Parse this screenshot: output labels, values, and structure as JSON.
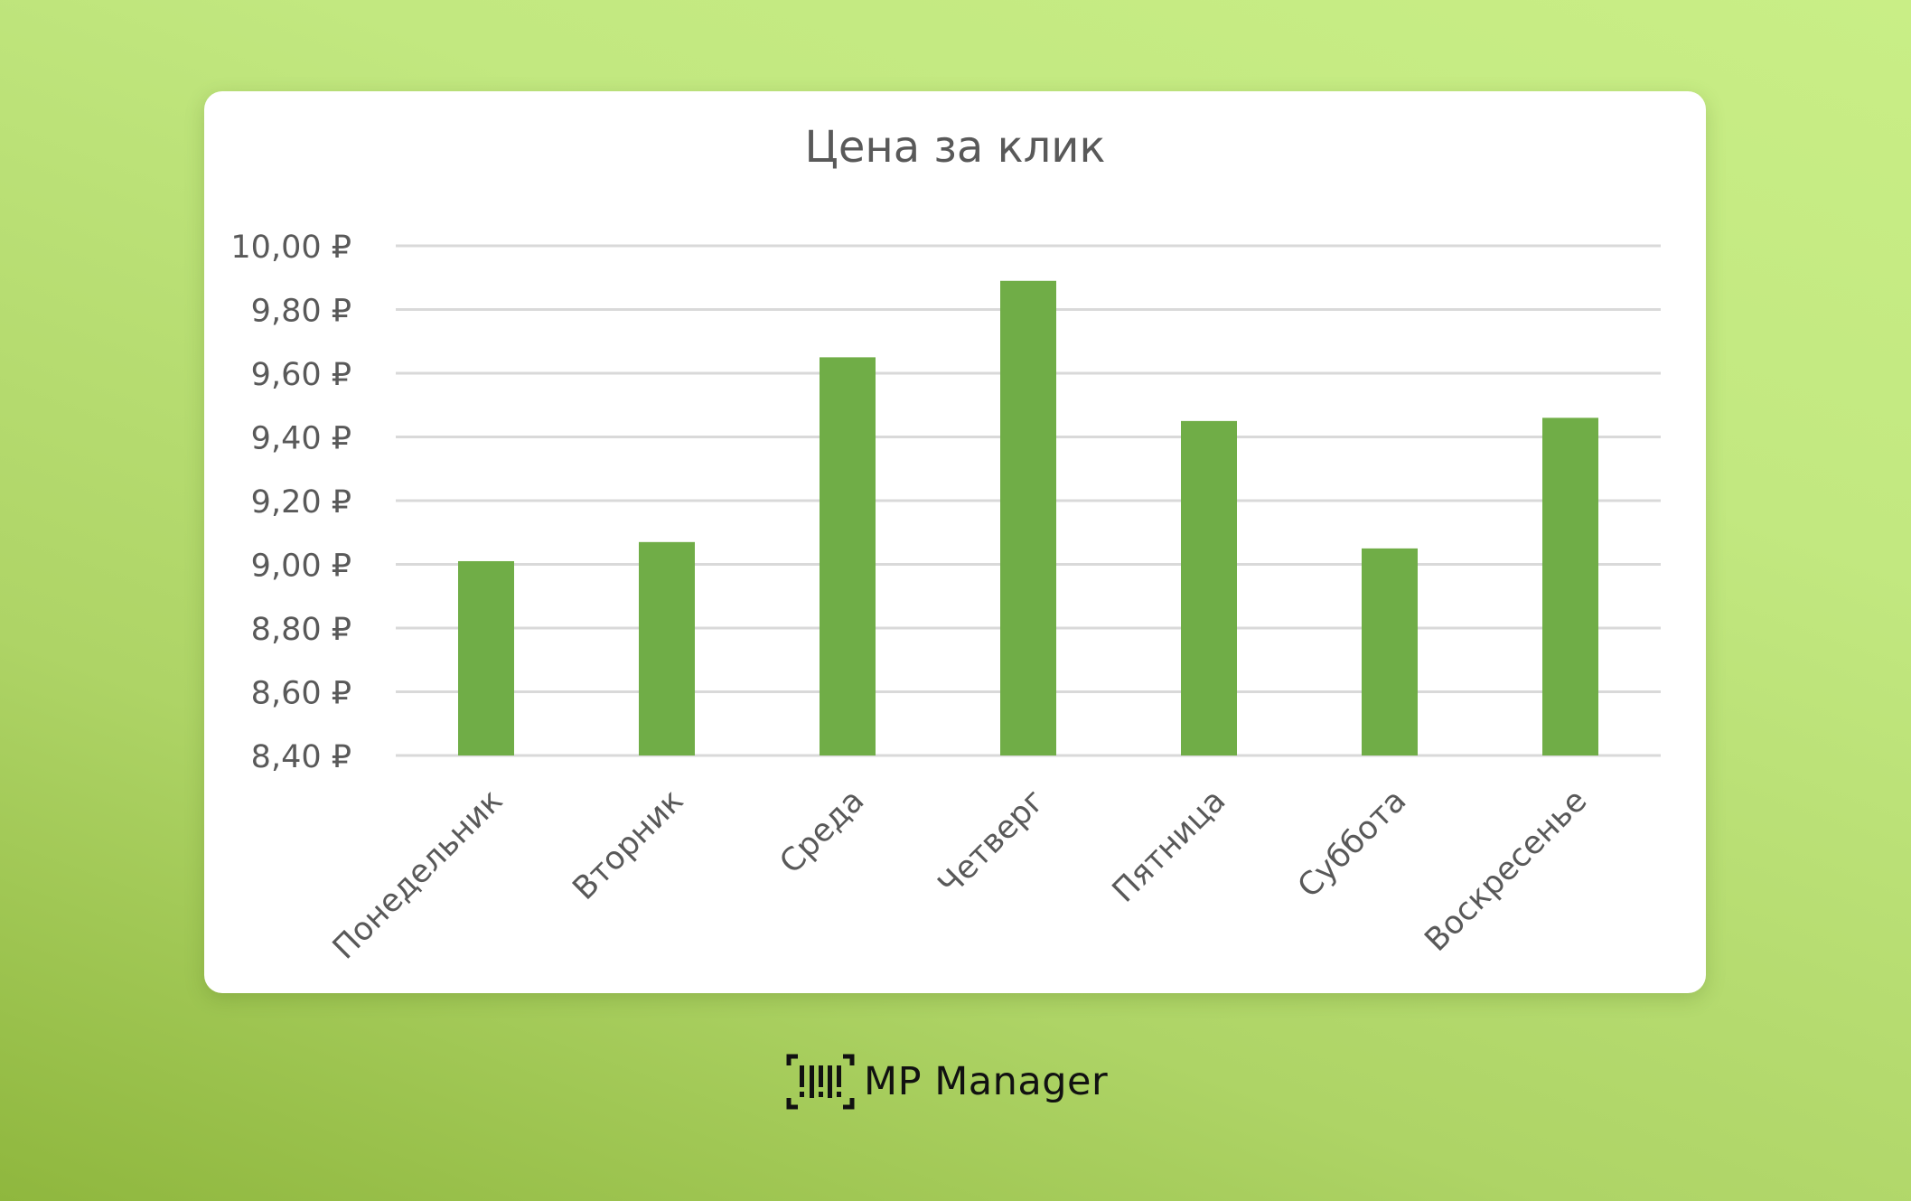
{
  "chart_data": {
    "type": "bar",
    "title": "Цена за клик",
    "categories": [
      "Понедельник",
      "Вторник",
      "Среда",
      "Четверг",
      "Пятница",
      "Суббота",
      "Воскресенье"
    ],
    "values": [
      9.01,
      9.07,
      9.65,
      9.89,
      9.45,
      9.05,
      9.46
    ],
    "ylim": [
      8.4,
      10.0
    ],
    "yticks": [
      8.4,
      8.6,
      8.8,
      9.0,
      9.2,
      9.4,
      9.6,
      9.8,
      10.0
    ],
    "ytick_labels": [
      "8,40 ₽",
      "8,60 ₽",
      "8,80 ₽",
      "9,00 ₽",
      "9,20 ₽",
      "9,40 ₽",
      "9,60 ₽",
      "9,80 ₽",
      "10,00 ₽"
    ],
    "xlabel": "",
    "ylabel": "",
    "grid": true,
    "legend": "none",
    "bar_color": "#70ad47",
    "grid_color": "#d9d9d9",
    "text_color": "#595959"
  },
  "brand": {
    "name": "MP Manager",
    "icon": "barcode-logo-icon"
  },
  "colors": {
    "background_top": "#c9ee86",
    "background_bottom": "#8fb73e",
    "card": "#ffffff"
  }
}
